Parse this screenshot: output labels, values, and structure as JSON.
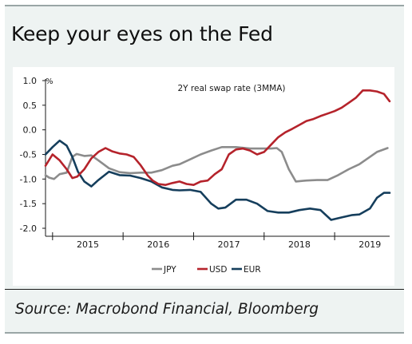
{
  "title": "Keep your eyes on the Fed",
  "source": "Source: Macrobond Financial, Bloomberg",
  "chart_data": {
    "type": "line",
    "title": "2Y real swap rate (3MMA)",
    "ylabel": "%",
    "ylim": [
      -2.0,
      1.0
    ],
    "yticks": [
      1.0,
      0.5,
      0.0,
      -0.5,
      -1.0,
      -1.5,
      -2.0
    ],
    "ytick_labels": [
      "1.0",
      "0.5",
      "0.0",
      "-0.5",
      "-1.0",
      "-1.5",
      "-2.0"
    ],
    "xlim": [
      2014.4,
      2019.28
    ],
    "xtick_labels": [
      "2015",
      "2016",
      "2017",
      "2018",
      "2019"
    ],
    "xtick_positions": [
      2015.0,
      2016.0,
      2017.0,
      2018.0,
      2019.0
    ],
    "year_boundaries": [
      2014.5,
      2015.5,
      2016.5,
      2017.5,
      2018.5
    ],
    "grid": false,
    "legend_position": "bottom-center",
    "colors": {
      "JPY": "#8c8c8c",
      "USD": "#b5232b",
      "EUR": "#153e5c"
    },
    "series": [
      {
        "name": "JPY",
        "x": [
          2014.4,
          2014.45,
          2014.52,
          2014.6,
          2014.7,
          2014.78,
          2014.84,
          2014.95,
          2015.05,
          2015.15,
          2015.3,
          2015.45,
          2015.6,
          2015.75,
          2015.9,
          2016.05,
          2016.2,
          2016.3,
          2016.45,
          2016.6,
          2016.75,
          2016.9,
          2017.1,
          2017.3,
          2017.5,
          2017.6,
          2017.68,
          2017.75,
          2017.85,
          2017.95,
          2018.1,
          2018.25,
          2018.4,
          2018.55,
          2018.7,
          2018.85,
          2019.0,
          2019.1,
          2019.25
        ],
        "y": [
          -0.92,
          -0.97,
          -1.0,
          -0.9,
          -0.87,
          -0.55,
          -0.49,
          -0.53,
          -0.52,
          -0.62,
          -0.78,
          -0.86,
          -0.88,
          -0.87,
          -0.87,
          -0.82,
          -0.73,
          -0.7,
          -0.6,
          -0.5,
          -0.42,
          -0.35,
          -0.35,
          -0.38,
          -0.38,
          -0.38,
          -0.37,
          -0.45,
          -0.8,
          -1.05,
          -1.03,
          -1.02,
          -1.02,
          -0.92,
          -0.8,
          -0.7,
          -0.55,
          -0.45,
          -0.37
        ]
      },
      {
        "name": "USD",
        "x": [
          2014.4,
          2014.5,
          2014.6,
          2014.7,
          2014.78,
          2014.85,
          2014.95,
          2015.05,
          2015.15,
          2015.25,
          2015.35,
          2015.45,
          2015.55,
          2015.65,
          2015.75,
          2015.85,
          2015.92,
          2016.0,
          2016.1,
          2016.2,
          2016.3,
          2016.4,
          2016.5,
          2016.6,
          2016.7,
          2016.8,
          2016.9,
          2017.0,
          2017.1,
          2017.2,
          2017.3,
          2017.4,
          2017.5,
          2017.6,
          2017.7,
          2017.8,
          2017.9,
          2018.0,
          2018.1,
          2018.2,
          2018.3,
          2018.4,
          2018.5,
          2018.6,
          2018.7,
          2018.8,
          2018.9,
          2019.0,
          2019.1,
          2019.2,
          2019.28
        ],
        "y": [
          -0.73,
          -0.5,
          -0.62,
          -0.8,
          -0.98,
          -0.95,
          -0.8,
          -0.58,
          -0.45,
          -0.37,
          -0.44,
          -0.48,
          -0.5,
          -0.55,
          -0.72,
          -0.93,
          -1.03,
          -1.1,
          -1.12,
          -1.08,
          -1.05,
          -1.1,
          -1.12,
          -1.05,
          -1.03,
          -0.9,
          -0.8,
          -0.5,
          -0.4,
          -0.38,
          -0.42,
          -0.5,
          -0.45,
          -0.3,
          -0.15,
          -0.05,
          0.02,
          0.1,
          0.18,
          0.22,
          0.28,
          0.33,
          0.38,
          0.45,
          0.55,
          0.65,
          0.8,
          0.8,
          0.78,
          0.73,
          0.58
        ]
      },
      {
        "name": "EUR",
        "x": [
          2014.4,
          2014.5,
          2014.6,
          2014.7,
          2014.78,
          2014.86,
          2014.95,
          2015.05,
          2015.15,
          2015.3,
          2015.45,
          2015.6,
          2015.75,
          2015.9,
          2016.05,
          2016.2,
          2016.3,
          2016.45,
          2016.6,
          2016.75,
          2016.85,
          2016.95,
          2017.1,
          2017.25,
          2017.4,
          2017.55,
          2017.7,
          2017.85,
          2018.0,
          2018.15,
          2018.3,
          2018.45,
          2018.6,
          2018.75,
          2018.85,
          2019.0,
          2019.1,
          2019.2,
          2019.28
        ],
        "y": [
          -0.5,
          -0.35,
          -0.22,
          -0.32,
          -0.55,
          -0.85,
          -1.05,
          -1.15,
          -1.02,
          -0.85,
          -0.92,
          -0.93,
          -0.98,
          -1.05,
          -1.17,
          -1.22,
          -1.23,
          -1.22,
          -1.26,
          -1.5,
          -1.6,
          -1.58,
          -1.42,
          -1.42,
          -1.5,
          -1.65,
          -1.68,
          -1.68,
          -1.63,
          -1.6,
          -1.63,
          -1.83,
          -1.78,
          -1.73,
          -1.72,
          -1.6,
          -1.38,
          -1.28,
          -1.28
        ]
      }
    ]
  }
}
